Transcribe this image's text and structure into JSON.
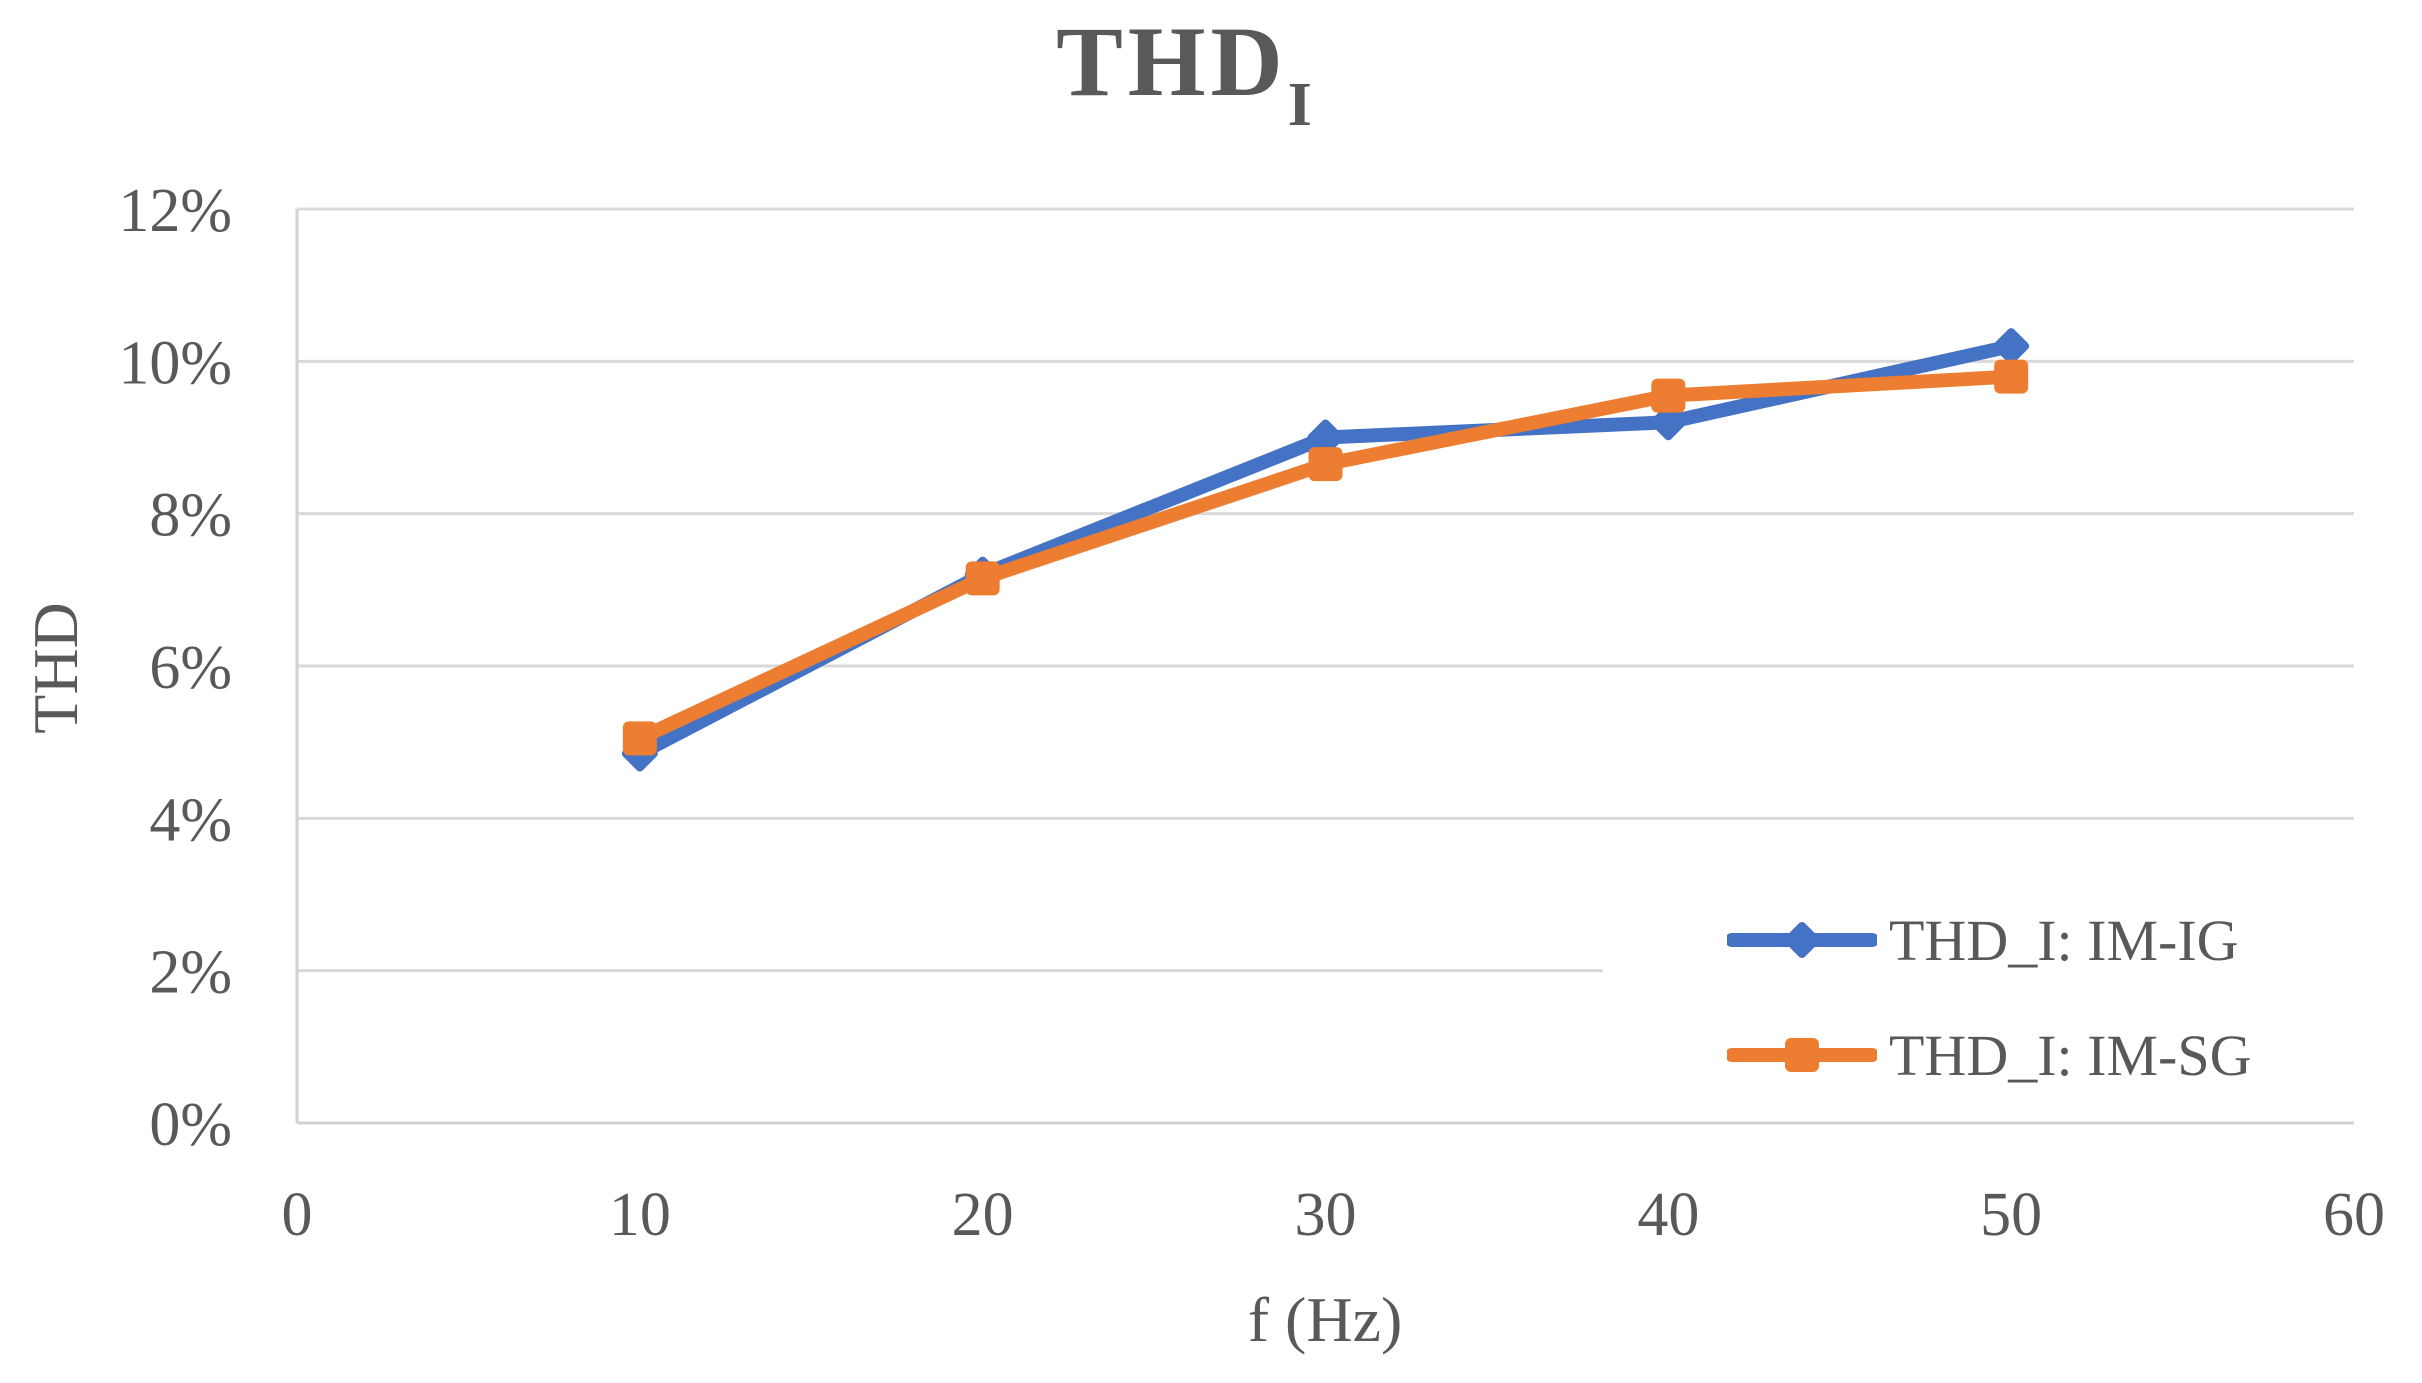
{
  "chart_data": {
    "type": "line",
    "title": "THD_I",
    "title_main": "THD",
    "title_sub": "I",
    "xlabel": "f (Hz)",
    "ylabel": "THD",
    "xlim": [
      0,
      60
    ],
    "ylim": [
      0,
      12
    ],
    "x_ticks": [
      0,
      10,
      20,
      30,
      40,
      50,
      60
    ],
    "y_ticks": {
      "values": [
        0,
        2,
        4,
        6,
        8,
        10,
        12
      ],
      "labels": [
        "0%",
        "2%",
        "4%",
        "6%",
        "8%",
        "10%",
        "12%"
      ]
    },
    "grid": "horizontal-only",
    "legend_position": "lower-right",
    "x": [
      10,
      20,
      30,
      40,
      50
    ],
    "series": [
      {
        "name": "THD_I: IM-IG",
        "marker": "diamond",
        "color": "#4472C4",
        "unit": "%",
        "values": [
          4.85,
          7.2,
          9.0,
          9.2,
          10.2
        ]
      },
      {
        "name": "THD_I: IM-SG",
        "marker": "square",
        "color": "#ED7D31",
        "unit": "%",
        "values": [
          5.05,
          7.15,
          8.65,
          9.55,
          9.8
        ]
      }
    ],
    "colors": {
      "text": "#595959",
      "gridline": "#D9D9D9",
      "axis_line": "#D2D2D2",
      "background": "#FFFFFF"
    }
  }
}
